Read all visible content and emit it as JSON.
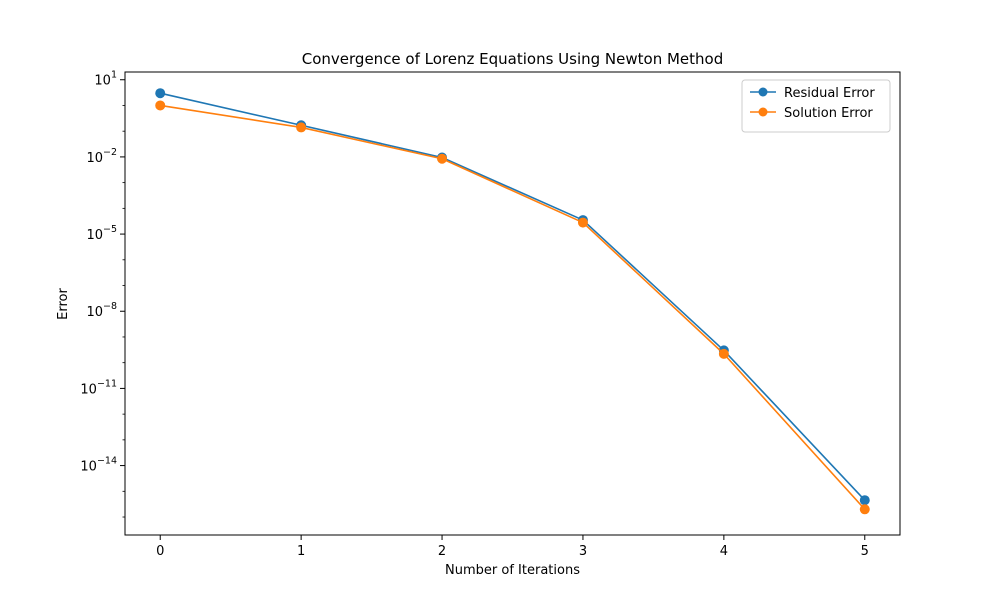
{
  "chart_data": {
    "type": "line",
    "title": "Convergence of Lorenz Equations Using Newton Method",
    "xlabel": "Number of Iterations",
    "ylabel": "Error",
    "yscale": "log",
    "xlim": [
      -0.25,
      5.25
    ],
    "ylim": [
      2e-17,
      20
    ],
    "x": [
      0,
      1,
      2,
      3,
      4,
      5
    ],
    "xticks": [
      {
        "value": 0,
        "label": "0"
      },
      {
        "value": 1,
        "label": "1"
      },
      {
        "value": 2,
        "label": "2"
      },
      {
        "value": 3,
        "label": "3"
      },
      {
        "value": 4,
        "label": "4"
      },
      {
        "value": 5,
        "label": "5"
      }
    ],
    "yticks": [
      {
        "value": 10,
        "base": "10",
        "exp": "1"
      },
      {
        "value": 0.01,
        "base": "10",
        "exp": "−2"
      },
      {
        "value": 1e-05,
        "base": "10",
        "exp": "−5"
      },
      {
        "value": 1e-08,
        "base": "10",
        "exp": "−8"
      },
      {
        "value": 1e-11,
        "base": "10",
        "exp": "−11"
      },
      {
        "value": 1e-14,
        "base": "10",
        "exp": "−14"
      }
    ],
    "series": [
      {
        "name": "Residual Error",
        "color": "#1f77b4",
        "values": [
          3.0,
          0.17,
          0.0095,
          3.5e-05,
          3e-10,
          4.5e-16
        ]
      },
      {
        "name": "Solution Error",
        "color": "#ff7f0e",
        "values": [
          1.0,
          0.14,
          0.0085,
          2.8e-05,
          2.2e-10,
          2e-16
        ]
      }
    ],
    "grid": false,
    "legend": "top-right"
  }
}
